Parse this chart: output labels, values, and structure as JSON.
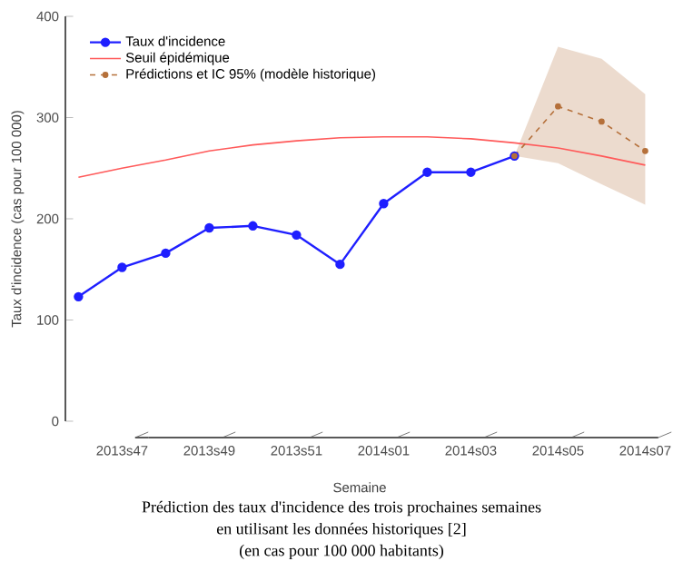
{
  "chart_data": {
    "type": "line",
    "categories": [
      null,
      "2013s47",
      null,
      "2013s49",
      null,
      "2013s51",
      null,
      "2014s01",
      null,
      "2014s03",
      null,
      "2014s05",
      null,
      "2014s07"
    ],
    "series": [
      {
        "name": "Taux d'incidence",
        "color": "#1f1fff",
        "marker": "circle",
        "line_style": "solid",
        "values": [
          123,
          152,
          166,
          191,
          193,
          184,
          155,
          215,
          246,
          246,
          262,
          null,
          null,
          null
        ]
      },
      {
        "name": "Seuil épidémique",
        "color": "#ff5a5a",
        "marker": "none",
        "line_style": "solid",
        "values": [
          241,
          250,
          258,
          267,
          273,
          277,
          280,
          281,
          281,
          279,
          275,
          270,
          262,
          253
        ]
      },
      {
        "name": "Prédictions et IC 95% (modèle historique)",
        "color": "#b5703a",
        "marker": "circle",
        "line_style": "dashed",
        "values": [
          null,
          null,
          null,
          null,
          null,
          null,
          null,
          null,
          null,
          null,
          262,
          311,
          296,
          267
        ],
        "lower": [
          null,
          null,
          null,
          null,
          null,
          null,
          null,
          null,
          null,
          null,
          262,
          255,
          234,
          214
        ],
        "upper": [
          null,
          null,
          null,
          null,
          null,
          null,
          null,
          null,
          null,
          null,
          262,
          370,
          358,
          323
        ]
      }
    ],
    "ylim": [
      0,
      400
    ],
    "yticks": [
      0,
      100,
      200,
      300,
      400
    ],
    "xlabel": "Semaine",
    "ylabel": "Taux d'incidence (cas pour 100 000)",
    "legend": "top left",
    "annotations": [
      "Prédiction des taux d'incidence des trois prochaines semaines",
      "en utilisant les données historiques [2]",
      "(en cas pour 100 000 habitants)"
    ]
  }
}
